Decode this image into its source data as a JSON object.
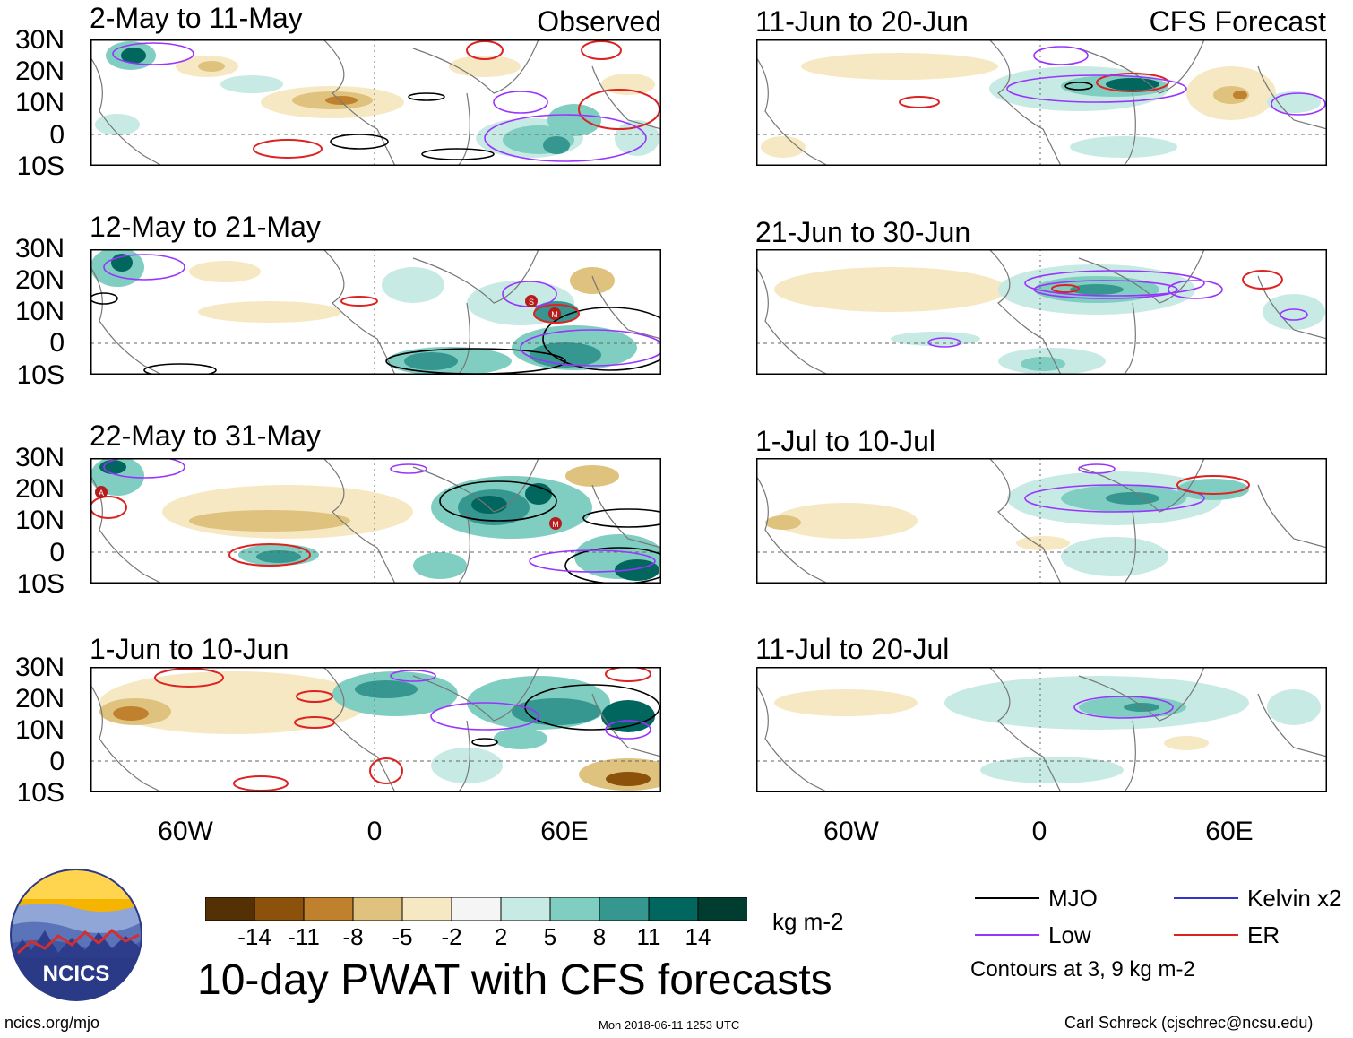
{
  "header": {
    "observed_label": "Observed",
    "forecast_label": "CFS Forecast"
  },
  "panels": {
    "left": [
      {
        "title": "2-May to 11-May"
      },
      {
        "title": "12-May to 21-May"
      },
      {
        "title": "22-May to 31-May"
      },
      {
        "title": "1-Jun to 10-Jun"
      }
    ],
    "right": [
      {
        "title": "11-Jun to 20-Jun"
      },
      {
        "title": "21-Jun to 30-Jun"
      },
      {
        "title": "1-Jul to 10-Jul"
      },
      {
        "title": "11-Jul to 20-Jul"
      }
    ]
  },
  "axes": {
    "lat_labels": [
      "30N",
      "20N",
      "10N",
      "0",
      "10S"
    ],
    "lon_labels": [
      "60W",
      "0",
      "60E"
    ]
  },
  "storm_markers": {
    "s": "S",
    "m": "M",
    "a": "A"
  },
  "colorbar": {
    "ticks": [
      "-14",
      "-11",
      "-8",
      "-5",
      "-2",
      "2",
      "5",
      "8",
      "11",
      "14"
    ],
    "units": "kg m-2",
    "colors": [
      "#543005",
      "#8c510a",
      "#bf812d",
      "#dfc27d",
      "#f6e8c3",
      "#f5f5f5",
      "#c7eae5",
      "#80cdc1",
      "#35978f",
      "#01665e",
      "#003c30"
    ]
  },
  "title": "10-day PWAT with CFS forecasts",
  "legend": {
    "items": [
      {
        "label": "MJO",
        "color": "#000000"
      },
      {
        "label": "Kelvin x2",
        "color": "#3333cc"
      },
      {
        "label": "Low",
        "color": "#9933ff"
      },
      {
        "label": "ER",
        "color": "#dd2222"
      }
    ],
    "note": "Contours at 3, 9 kg m-2"
  },
  "logo": {
    "text": "NCICS"
  },
  "footer": {
    "url": "ncics.org/mjo",
    "timestamp": "Mon 2018-06-11 1253 UTC",
    "credit": "Carl Schreck (cjschrec@ncsu.edu)"
  }
}
